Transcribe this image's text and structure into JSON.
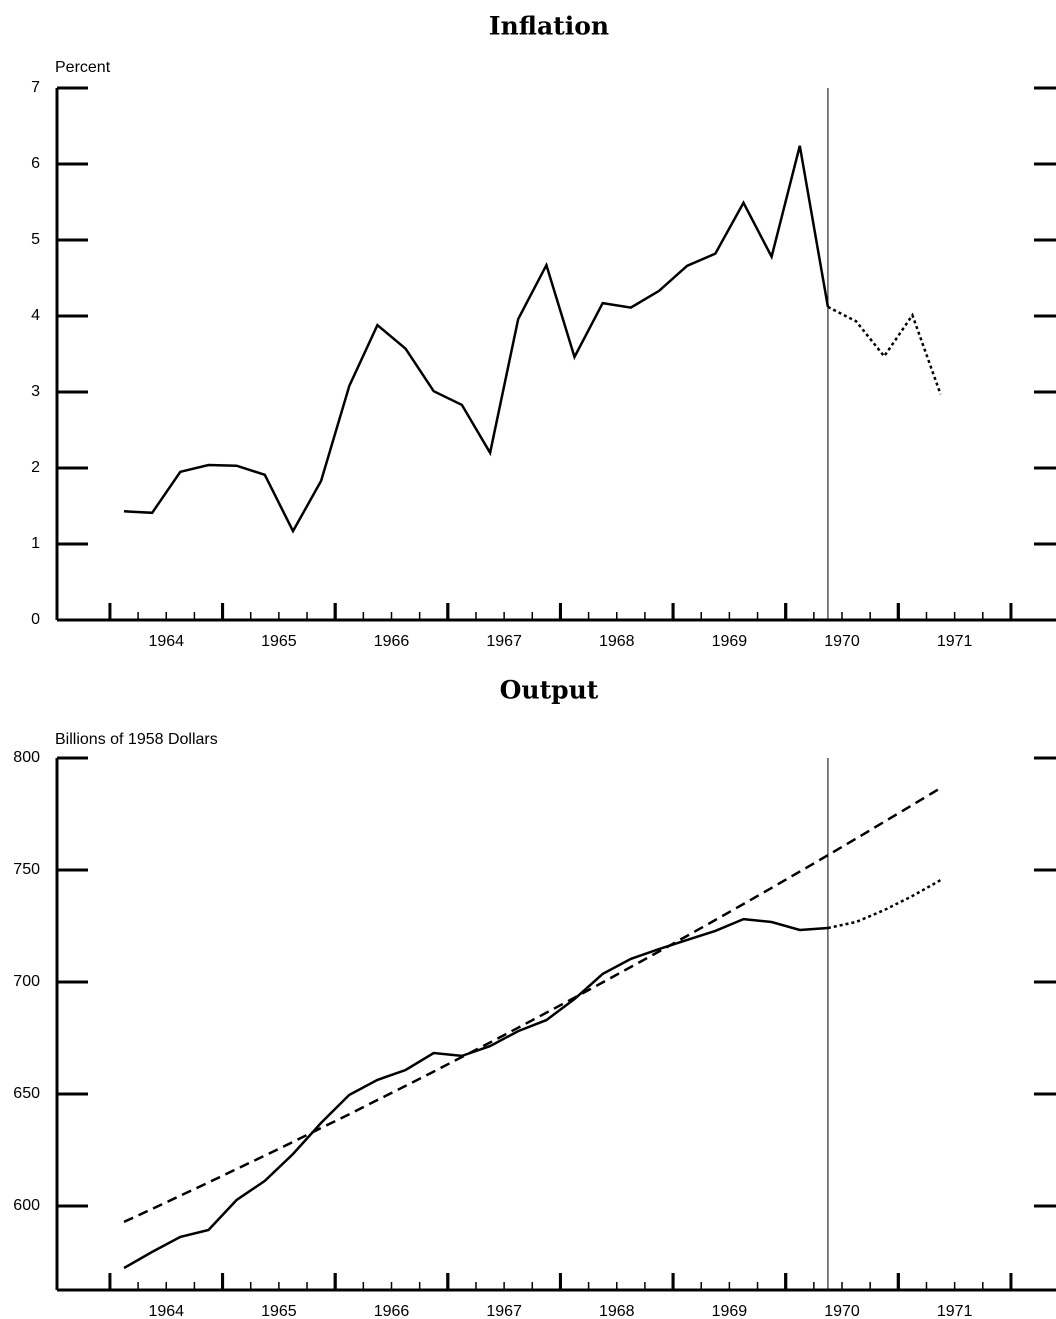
{
  "chart_data": [
    {
      "type": "line",
      "title": "Inflation",
      "ylabel": "Percent",
      "x": [
        1964.125,
        1964.375,
        1964.625,
        1964.875,
        1965.125,
        1965.375,
        1965.625,
        1965.875,
        1966.125,
        1966.375,
        1966.625,
        1966.875,
        1967.125,
        1967.375,
        1967.625,
        1967.875,
        1968.125,
        1968.375,
        1968.625,
        1968.875,
        1969.125,
        1969.375,
        1969.625,
        1969.875,
        1970.125,
        1970.375,
        1970.625,
        1970.875,
        1971.125,
        1971.375
      ],
      "xlim": [
        1963.53,
        1972.4
      ],
      "xticks": [
        {
          "value": 1964.5,
          "label": "1964"
        },
        {
          "value": 1965.5,
          "label": "1965"
        },
        {
          "value": 1966.5,
          "label": "1966"
        },
        {
          "value": 1967.5,
          "label": "1967"
        },
        {
          "value": 1968.5,
          "label": "1968"
        },
        {
          "value": 1969.5,
          "label": "1969"
        },
        {
          "value": 1970.5,
          "label": "1970"
        },
        {
          "value": 1971.5,
          "label": "1971"
        }
      ],
      "ylim": [
        0,
        7
      ],
      "yticks": [
        0,
        1,
        2,
        3,
        4,
        5,
        6,
        7
      ],
      "vline": 1970.375,
      "series": [
        {
          "color": "#000000",
          "style": "solid",
          "values": [
            1.43,
            1.41,
            1.95,
            2.04,
            2.03,
            1.91,
            1.17,
            1.83,
            3.08,
            3.88,
            3.57,
            3.01,
            2.83,
            2.2,
            3.96,
            4.67,
            3.46,
            4.17,
            4.11,
            4.33,
            4.66,
            4.82,
            5.49,
            4.78,
            6.24,
            4.12,
            null,
            null,
            null,
            null
          ]
        },
        {
          "color": "#000000",
          "style": "dotted",
          "values": [
            null,
            null,
            null,
            null,
            null,
            null,
            null,
            null,
            null,
            null,
            null,
            null,
            null,
            null,
            null,
            null,
            null,
            null,
            null,
            null,
            null,
            null,
            null,
            null,
            null,
            4.12,
            3.93,
            3.47,
            4.01,
            2.97
          ]
        }
      ]
    },
    {
      "type": "line",
      "title": "Output",
      "ylabel": "Billions of 1958 Dollars",
      "x": [
        1964.125,
        1964.375,
        1964.625,
        1964.875,
        1965.125,
        1965.375,
        1965.625,
        1965.875,
        1966.125,
        1966.375,
        1966.625,
        1966.875,
        1967.125,
        1967.375,
        1967.625,
        1967.875,
        1968.125,
        1968.375,
        1968.625,
        1968.875,
        1969.125,
        1969.375,
        1969.625,
        1969.875,
        1970.125,
        1970.375,
        1970.625,
        1970.875,
        1971.125,
        1971.375
      ],
      "xlim": [
        1963.53,
        1972.4
      ],
      "xticks": [
        {
          "value": 1964.5,
          "label": "1964"
        },
        {
          "value": 1965.5,
          "label": "1965"
        },
        {
          "value": 1966.5,
          "label": "1966"
        },
        {
          "value": 1967.5,
          "label": "1967"
        },
        {
          "value": 1968.5,
          "label": "1968"
        },
        {
          "value": 1969.5,
          "label": "1969"
        },
        {
          "value": 1970.5,
          "label": "1970"
        },
        {
          "value": 1971.5,
          "label": "1971"
        }
      ],
      "ylim": [
        562.5,
        800
      ],
      "yticks": [
        600,
        650,
        700,
        750,
        800
      ],
      "vline": 1970.375,
      "series": [
        {
          "color": "#000000",
          "style": "solid",
          "values": [
            572.3,
            579.5,
            586.2,
            589.3,
            602.7,
            611.2,
            623.2,
            637.1,
            649.6,
            656.3,
            660.7,
            668.3,
            667,
            671.4,
            678.1,
            683,
            692.4,
            703.6,
            710.3,
            714.7,
            718.8,
            722.8,
            728.1,
            726.8,
            723.2,
            724.1,
            null,
            null,
            null,
            null
          ]
        },
        {
          "color": "#000000",
          "style": "dotted",
          "values": [
            null,
            null,
            null,
            null,
            null,
            null,
            null,
            null,
            null,
            null,
            null,
            null,
            null,
            null,
            null,
            null,
            null,
            null,
            null,
            null,
            null,
            null,
            null,
            null,
            null,
            724.1,
            726.8,
            732.1,
            738.4,
            745.5
          ]
        },
        {
          "color": "#000000",
          "style": "dashed",
          "values": [
            592.9,
            598.7,
            604.6,
            610.5,
            616.5,
            622.5,
            628.6,
            634.8,
            641,
            647.3,
            653.6,
            660,
            666.5,
            673,
            679.6,
            686.3,
            693,
            699.8,
            706.7,
            713.6,
            720.6,
            727.7,
            734.8,
            742,
            749.3,
            756.6,
            764,
            771.5,
            779,
            786.6
          ]
        }
      ]
    }
  ]
}
